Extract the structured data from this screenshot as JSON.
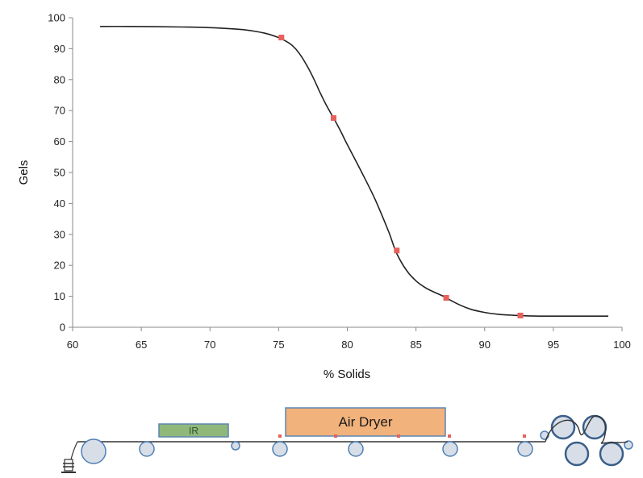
{
  "chart_data": {
    "type": "line",
    "xlabel": "% Solids",
    "ylabel": "Gels",
    "xlim": [
      60,
      100
    ],
    "ylim": [
      0,
      100
    ],
    "x_ticks": [
      60,
      65,
      70,
      75,
      80,
      85,
      90,
      95,
      100
    ],
    "y_ticks": [
      0,
      10,
      20,
      30,
      40,
      50,
      60,
      70,
      80,
      90,
      100
    ],
    "grid": false,
    "line_color": "#222222",
    "marker_color": "#e8605c",
    "curve": {
      "x": [
        62,
        64,
        66,
        68,
        70,
        72,
        73,
        74,
        75,
        75.5,
        76,
        76.5,
        77,
        77.5,
        78,
        78.5,
        79,
        79.5,
        80,
        81,
        82,
        83,
        83.5,
        84,
        84.5,
        85,
        85.5,
        86,
        87,
        87.2,
        88,
        89,
        90,
        91,
        92,
        92.5,
        93,
        94,
        96,
        99
      ],
      "y": [
        97.2,
        97.2,
        97.1,
        97.0,
        96.8,
        96.3,
        95.8,
        95.0,
        93.6,
        92.5,
        91.0,
        88.5,
        85.0,
        80.8,
        76.0,
        71.5,
        67.6,
        63.5,
        59.0,
        50.5,
        41.5,
        31.0,
        24.8,
        20.5,
        17.3,
        15.0,
        13.3,
        12.0,
        10.0,
        9.5,
        7.6,
        5.8,
        4.8,
        4.2,
        3.9,
        3.8,
        3.7,
        3.6,
        3.6,
        3.6
      ]
    },
    "points": [
      {
        "x": 75.2,
        "y": 93.6
      },
      {
        "x": 79.0,
        "y": 67.6
      },
      {
        "x": 83.6,
        "y": 24.8
      },
      {
        "x": 87.2,
        "y": 9.5
      },
      {
        "x": 92.6,
        "y": 3.8
      }
    ]
  },
  "process_diagram": {
    "ir_label": "IR",
    "dryer_label": "Air Dryer",
    "ir_fill": "#8fb87a",
    "dryer_fill": "#f2b27c",
    "box_border": "#5a86b3",
    "roller_fill": "#d7dee8",
    "roller_stroke": "#4f7fb4",
    "marker_color": "#e8605c"
  }
}
